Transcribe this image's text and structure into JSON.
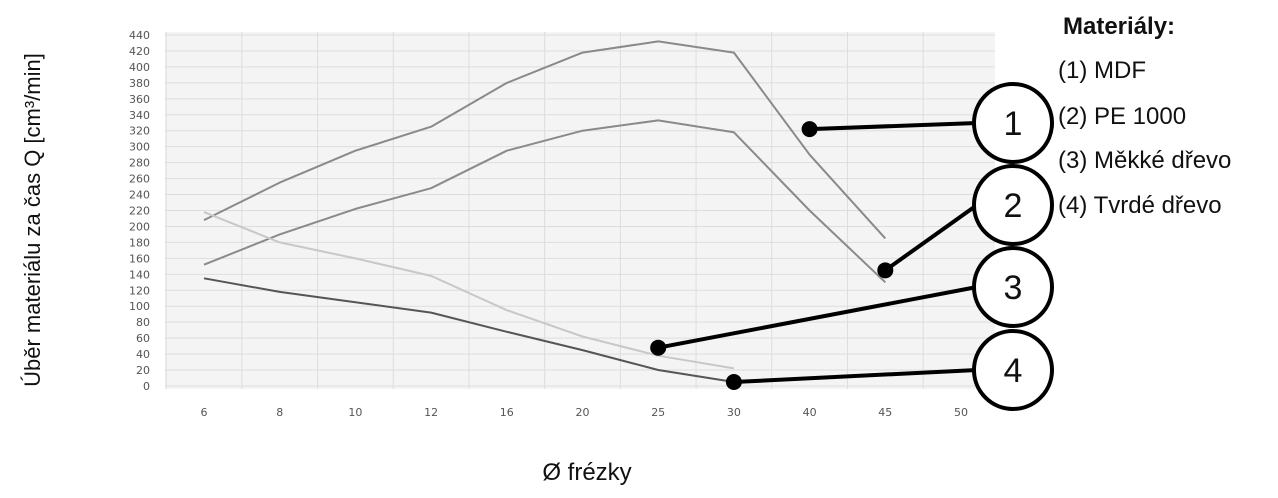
{
  "chart_data": {
    "type": "line",
    "title": "",
    "xlabel": "Ø frézky",
    "ylabel": "Úběr materiálu za čas Q [cm³/min]",
    "categories": [
      "6",
      "8",
      "10",
      "12",
      "16",
      "20",
      "25",
      "30",
      "40",
      "45",
      "50"
    ],
    "ylim": [
      0,
      440
    ],
    "yticks": [
      0,
      20,
      40,
      60,
      80,
      100,
      120,
      140,
      160,
      180,
      200,
      220,
      240,
      260,
      280,
      300,
      320,
      340,
      360,
      380,
      400,
      420,
      440
    ],
    "grid": true,
    "series": [
      {
        "name": "1",
        "color": "#8a8a8a",
        "values": [
          208,
          255,
          295,
          325,
          380,
          418,
          432,
          418,
          290,
          185,
          null
        ]
      },
      {
        "name": "2",
        "color": "#8a8a8a",
        "values": [
          152,
          190,
          222,
          248,
          295,
          320,
          333,
          318,
          220,
          130,
          null
        ]
      },
      {
        "name": "3",
        "color": "#c8c8c8",
        "values": [
          218,
          180,
          160,
          138,
          95,
          62,
          38,
          22,
          null,
          null,
          null
        ]
      },
      {
        "name": "4",
        "color": "#555555",
        "values": [
          135,
          118,
          105,
          92,
          68,
          45,
          20,
          5,
          null,
          null,
          null
        ]
      }
    ],
    "callouts": [
      {
        "label": "1",
        "x": "40",
        "y": 322
      },
      {
        "label": "2",
        "x": "45",
        "y": 145
      },
      {
        "label": "3",
        "x": "25",
        "y": 48
      },
      {
        "label": "4",
        "x": "30",
        "y": 5
      }
    ]
  },
  "legend": {
    "title": "Materiály:",
    "items": [
      "(1) MDF",
      "(2) PE 1000",
      "(3) Měkké dřevo",
      "(4) Tvrdé dřevo"
    ]
  },
  "colors": {
    "grid": "#dddddd",
    "plot_background": "#f4f4f4",
    "callout_stroke": "#000000"
  }
}
